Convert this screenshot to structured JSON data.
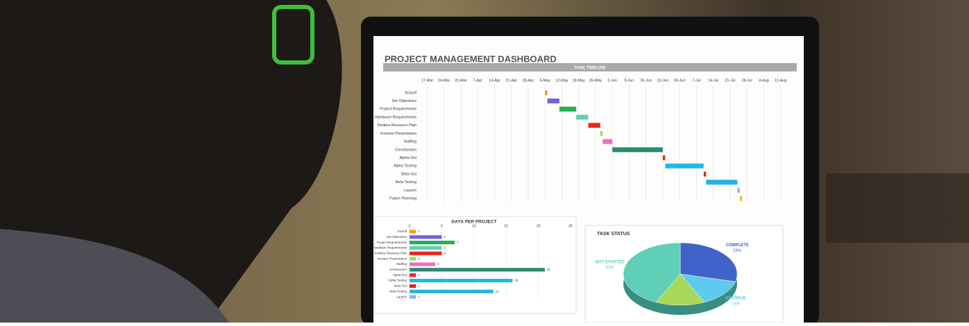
{
  "header": {
    "title": "PROJECT MANAGEMENT DASHBOARD"
  },
  "chart_data": [
    {
      "type": "gantt",
      "title": "TASK TIMELINE",
      "categories": [
        "Kickoff",
        "Set Objectives",
        "Project Requirements",
        "Hardware Requirements",
        "Finalize Resource Plan",
        "Investor Presentation",
        "Staffing",
        "Construction",
        "Alpha Out",
        "Alpha Testing",
        "Beta Out",
        "Beta Testing",
        "Launch",
        "Future Planning"
      ],
      "starts": [
        49,
        50,
        55,
        62,
        67,
        72,
        73,
        77,
        98,
        99,
        115,
        116,
        129,
        130
      ],
      "days": [
        1,
        5,
        7,
        5,
        5,
        1,
        4,
        21,
        1,
        16,
        1,
        13,
        1,
        1
      ],
      "colors": [
        "#f39c1f",
        "#7b5de0",
        "#22b24c",
        "#5fd3b3",
        "#e8261d",
        "#9ee05a",
        "#ef6fb7",
        "#2a8a72",
        "#e0301e",
        "#21b8e8",
        "#d52a1a",
        "#23b3e6",
        "#8fb4ef",
        "#f2c21b"
      ],
      "xlim": [
        -3,
        150
      ],
      "xticks": [
        {
          "value": 0,
          "label": "17-Mar"
        },
        {
          "value": 7,
          "label": "24-Mar"
        },
        {
          "value": 14,
          "label": "31-Mar"
        },
        {
          "value": 21,
          "label": "7-Apr"
        },
        {
          "value": 28,
          "label": "14-Apr"
        },
        {
          "value": 35,
          "label": "21-Apr"
        },
        {
          "value": 42,
          "label": "28-Apr"
        },
        {
          "value": 49,
          "label": "5-May"
        },
        {
          "value": 56,
          "label": "12-May"
        },
        {
          "value": 63,
          "label": "19-May"
        },
        {
          "value": 70,
          "label": "26-May"
        },
        {
          "value": 77,
          "label": "2-Jun"
        },
        {
          "value": 84,
          "label": "9-Jun"
        },
        {
          "value": 91,
          "label": "16-Jun"
        },
        {
          "value": 98,
          "label": "23-Jun"
        },
        {
          "value": 105,
          "label": "30-Jun"
        },
        {
          "value": 112,
          "label": "7-Jul"
        },
        {
          "value": 119,
          "label": "14-Jul"
        },
        {
          "value": 126,
          "label": "21-Jul"
        },
        {
          "value": 133,
          "label": "28-Jul"
        },
        {
          "value": 140,
          "label": "4-Aug"
        },
        {
          "value": 147,
          "label": "11-Aug"
        }
      ],
      "grid": true
    },
    {
      "type": "hbar",
      "title": "DAYS PER PROJECT",
      "categories": [
        "Kickoff",
        "Set Objectives",
        "Project Requirements",
        "Hardware Requirements",
        "Finalize Resource Plan",
        "Investor Presentation",
        "Staffing",
        "Construction",
        "Alpha Out",
        "Alpha Testing",
        "Beta Out",
        "Beta Testing",
        "Launch"
      ],
      "values": [
        1,
        5,
        7,
        5,
        5,
        1,
        4,
        21,
        1,
        16,
        1,
        13,
        1
      ],
      "colors": [
        "#f39c1f",
        "#7b5de0",
        "#22b24c",
        "#5fd3b3",
        "#e8261d",
        "#9ee05a",
        "#ef6fb7",
        "#2a8a72",
        "#e0301e",
        "#21b8e8",
        "#d52a1a",
        "#23b3e6",
        "#8fb4ef"
      ],
      "xlim": [
        0,
        25
      ],
      "xticks": [
        0,
        5,
        10,
        15,
        20,
        25
      ],
      "grid": true
    },
    {
      "type": "pie",
      "title": "TASK STATUS",
      "categories": [
        "COMPLETE",
        "OVERDUE",
        null,
        "NOT STARTED"
      ],
      "values": [
        29,
        14,
        14,
        43
      ],
      "value_labels": [
        "29%",
        "14%",
        null,
        "43%"
      ],
      "colors": [
        "#3f63c9",
        "#5ccbee",
        "#a8d858",
        "#5fcfb7"
      ]
    }
  ]
}
